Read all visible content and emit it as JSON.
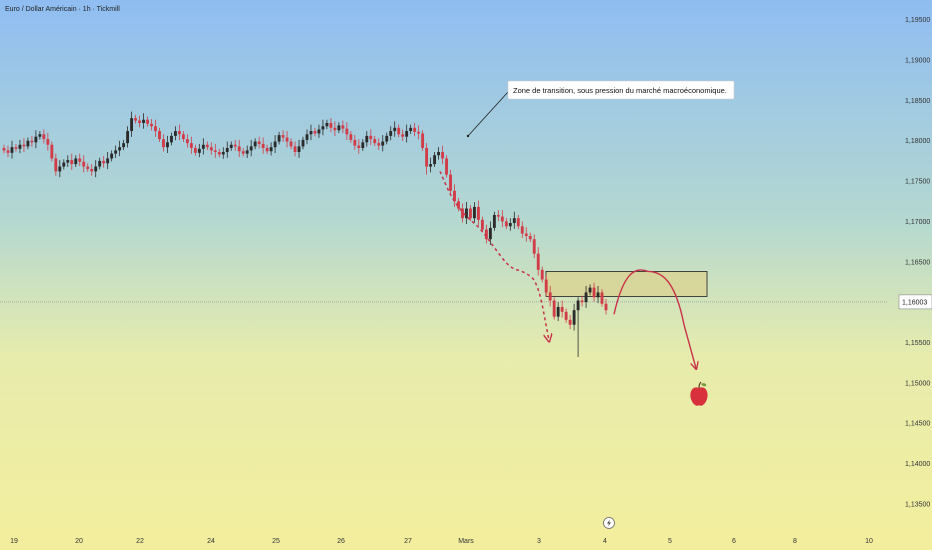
{
  "header": {
    "title": "Euro / Dollar Américain · 1h · Tickmill"
  },
  "annotation": {
    "text": "Zone de transition, sous pression du marché macroéconomique."
  },
  "colors": {
    "up": "#2b2b2b",
    "down": "#d23c48",
    "arrow": "#c8324a",
    "zone_fill": "#dbd28f",
    "zone_stroke": "#333333",
    "price_line": "#9a9a9a",
    "apple": "#d8313d"
  },
  "icons": {
    "apple": "apple-icon",
    "lightning": "lightning-icon"
  },
  "chart_data": {
    "type": "candlestick",
    "title": "Euro / Dollar Américain · 1h · Tickmill",
    "ylim": [
      1.133,
      1.1962
    ],
    "y_ticks": [
      "1,19500",
      "1,19000",
      "1,18500",
      "1,18000",
      "1,17500",
      "1,17000",
      "1,16500",
      "1,16003",
      "1,15500",
      "1,15000",
      "1,14500",
      "1,14000",
      "1,13500"
    ],
    "y_tick_values": [
      1.195,
      1.19,
      1.185,
      1.18,
      1.175,
      1.17,
      1.165,
      1.16003,
      1.155,
      1.15,
      1.145,
      1.14,
      1.135
    ],
    "x_ticks": [
      "19",
      "20",
      "22",
      "24",
      "25",
      "26",
      "27",
      "Mars",
      "3",
      "4",
      "5",
      "6",
      "8",
      "10"
    ],
    "current_price": 1.16003,
    "current_price_label": "1,16003",
    "zone": {
      "from_x_label": "3",
      "to_x_label": "5",
      "price_low": 1.1607,
      "price_high": 1.1638
    },
    "candles_close": [
      1.1788,
      1.1785,
      1.1792,
      1.179,
      1.1795,
      1.1793,
      1.18,
      1.1798,
      1.1805,
      1.1808,
      1.1802,
      1.1795,
      1.1778,
      1.1762,
      1.1768,
      1.1773,
      1.1776,
      1.1771,
      1.1778,
      1.1774,
      1.1768,
      1.1765,
      1.1762,
      1.1768,
      1.1775,
      1.1772,
      1.1778,
      1.1784,
      1.1788,
      1.1792,
      1.1797,
      1.1812,
      1.1828,
      1.1825,
      1.1822,
      1.1826,
      1.1821,
      1.1818,
      1.1812,
      1.1802,
      1.1792,
      1.1798,
      1.1806,
      1.1812,
      1.1808,
      1.1802,
      1.1797,
      1.1791,
      1.1785,
      1.179,
      1.1795,
      1.1792,
      1.1788,
      1.1786,
      1.1783,
      1.1786,
      1.1791,
      1.1795,
      1.1793,
      1.1787,
      1.1784,
      1.1788,
      1.1793,
      1.1799,
      1.1796,
      1.1791,
      1.1787,
      1.1792,
      1.1799,
      1.1807,
      1.1804,
      1.1799,
      1.1793,
      1.1786,
      1.1793,
      1.1801,
      1.1808,
      1.1812,
      1.1809,
      1.1814,
      1.1818,
      1.1822,
      1.1816,
      1.1813,
      1.1819,
      1.1815,
      1.1808,
      1.1801,
      1.1794,
      1.1791,
      1.1798,
      1.1806,
      1.1802,
      1.1797,
      1.1794,
      1.1799,
      1.1806,
      1.1812,
      1.1816,
      1.1808,
      1.1805,
      1.1812,
      1.1816,
      1.1811,
      1.1809,
      1.1791,
      1.1768,
      1.1771,
      1.1782,
      1.1786,
      1.1778,
      1.1758,
      1.1738,
      1.1725,
      1.1716,
      1.1704,
      1.1716,
      1.1704,
      1.1718,
      1.1702,
      1.169,
      1.1678,
      1.1692,
      1.1708,
      1.1706,
      1.17,
      1.1694,
      1.1698,
      1.1704,
      1.1694,
      1.1685,
      1.1682,
      1.1678,
      1.166,
      1.164,
      1.1628,
      1.1612,
      1.1602,
      1.1582,
      1.1594,
      1.1588,
      1.1578,
      1.1572,
      1.159,
      1.1602,
      1.16,
      1.1612,
      1.1618,
      1.1606,
      1.1612,
      1.1598,
      1.159
    ],
    "dashed_path_prices": [
      1.1762,
      1.1728,
      1.1706,
      1.1692,
      1.1668,
      1.1642,
      1.1638,
      1.1625,
      1.1552
    ],
    "solid_path_prices": [
      1.1585,
      1.1627,
      1.1638,
      1.1622,
      1.1518
    ]
  }
}
